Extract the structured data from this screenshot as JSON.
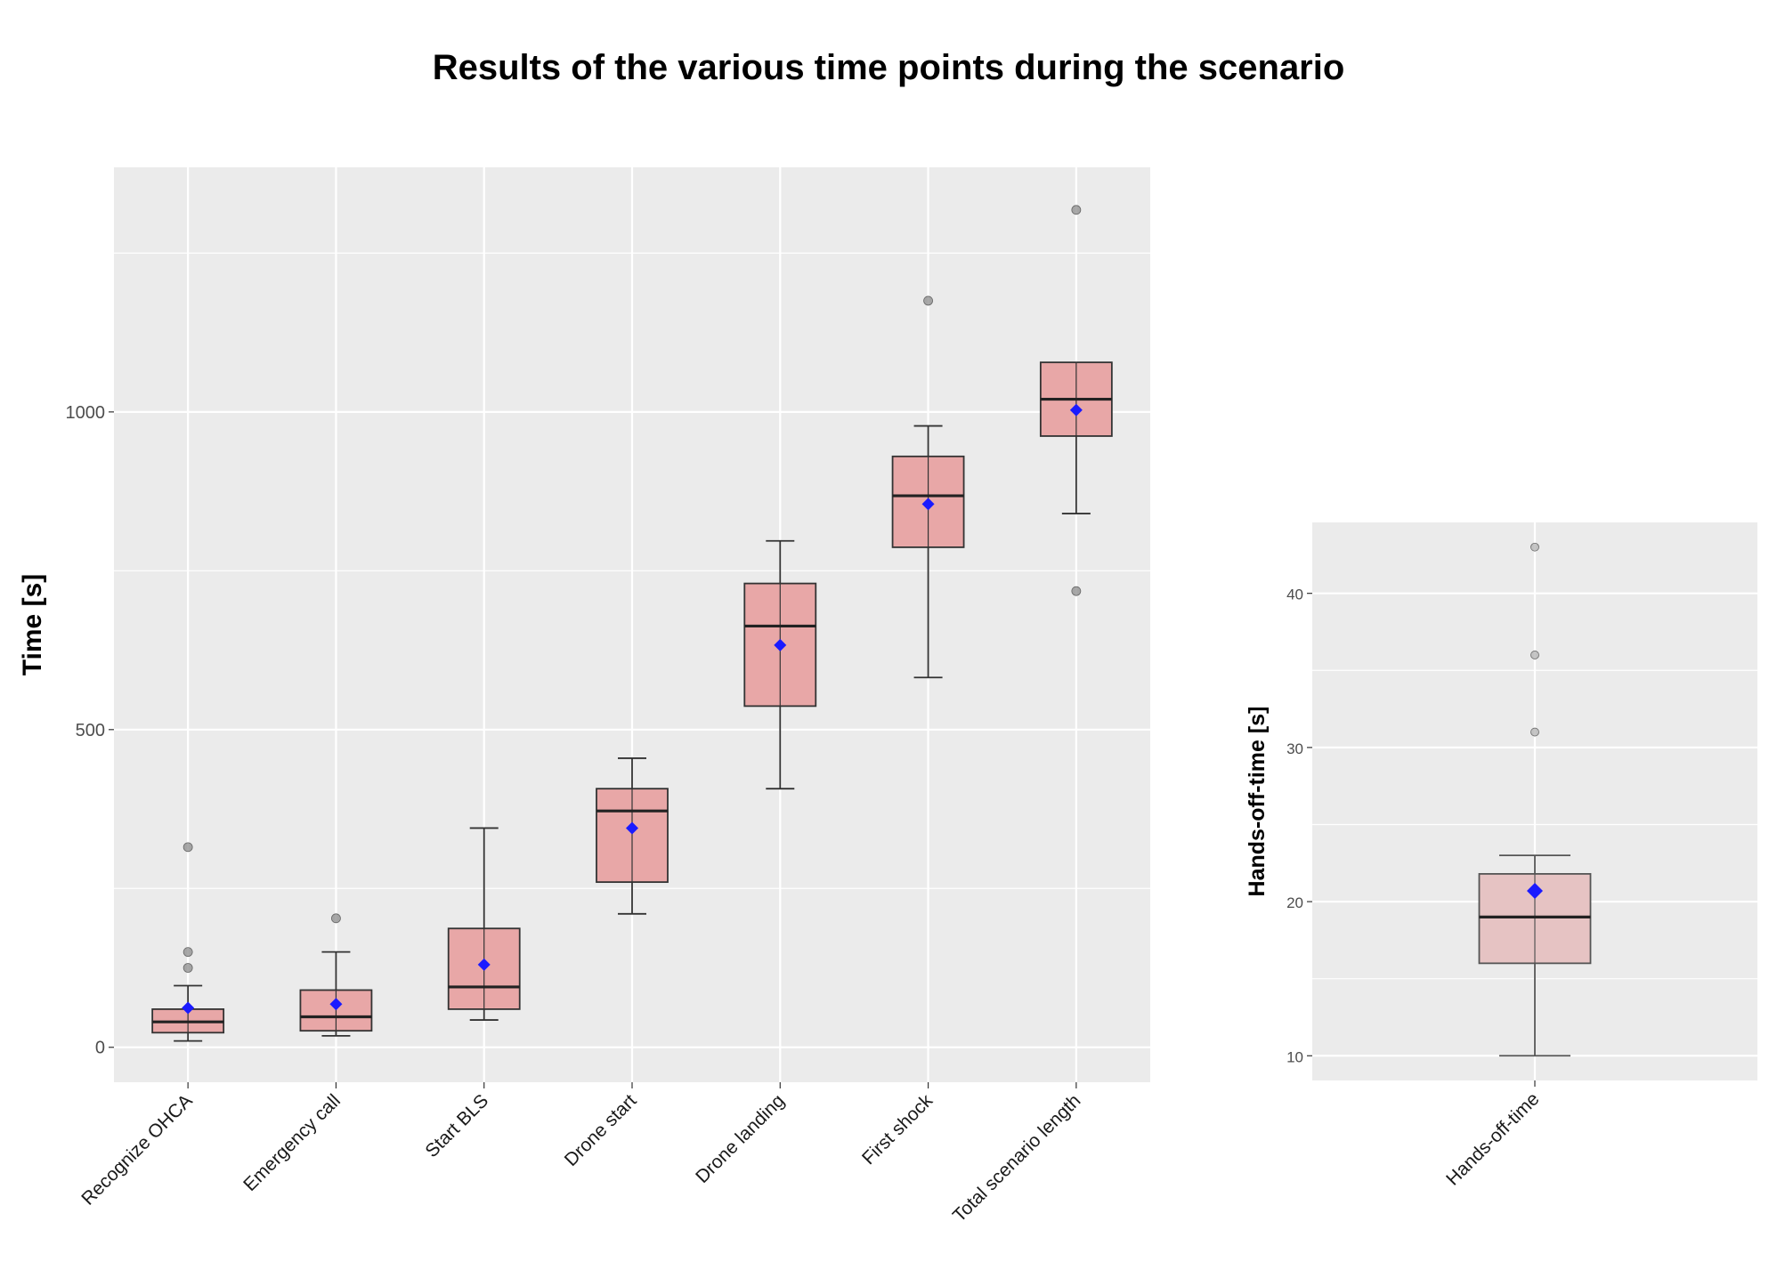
{
  "title": "Results of the various time points during the scenario",
  "chart_data": [
    {
      "type": "boxplot",
      "ylabel": "Time [s]",
      "xlabel": "",
      "ylim": [
        -55,
        1385
      ],
      "yticks": [
        0,
        500,
        1000
      ],
      "grid": true,
      "categories": [
        "Recognize OHCA",
        "Emergency call",
        "Start BLS",
        "Drone start",
        "Drone landing",
        "First shock",
        "Total scenario length"
      ],
      "boxes": [
        {
          "min": 10,
          "q1": 23,
          "median": 40,
          "q3": 60,
          "max": 97,
          "mean": 62,
          "outliers": [
            125,
            150,
            315
          ]
        },
        {
          "min": 18,
          "q1": 26,
          "median": 48,
          "q3": 90,
          "max": 150,
          "mean": 68,
          "outliers": [
            203
          ]
        },
        {
          "min": 43,
          "q1": 60,
          "median": 95,
          "q3": 187,
          "max": 345,
          "mean": 130,
          "outliers": []
        },
        {
          "min": 210,
          "q1": 260,
          "median": 372,
          "q3": 407,
          "max": 455,
          "mean": 345,
          "outliers": []
        },
        {
          "min": 407,
          "q1": 537,
          "median": 663,
          "q3": 730,
          "max": 797,
          "mean": 633,
          "outliers": []
        },
        {
          "min": 582,
          "q1": 787,
          "median": 868,
          "q3": 930,
          "max": 978,
          "mean": 855,
          "outliers": [
            1175
          ]
        },
        {
          "min": 840,
          "q1": 962,
          "median": 1020,
          "q3": 1078,
          "max": null,
          "mean": 1003,
          "outliers": [
            718,
            1318
          ]
        }
      ],
      "colors": {
        "box_fill": "#e8a7a7",
        "box_edge": "#333333",
        "mean": "#1a1aff",
        "outlier": "#8c8c8c",
        "panel": "#ebebeb",
        "grid": "#ffffff"
      }
    },
    {
      "type": "boxplot",
      "ylabel": "Hands-off-time [s]",
      "xlabel": "",
      "ylim": [
        8.4,
        44.6
      ],
      "yticks": [
        10,
        20,
        30,
        40
      ],
      "grid": true,
      "categories": [
        "Hands-off-time"
      ],
      "boxes": [
        {
          "min": 10,
          "q1": 16,
          "median": 19,
          "q3": 21.8,
          "max": 23,
          "mean": 20.7,
          "outliers": [
            31,
            36,
            43
          ]
        }
      ],
      "colors": {
        "box_fill": "#e6c3c3",
        "box_edge": "#555555",
        "mean": "#1a1aff",
        "outlier": "#b3b3b3",
        "panel": "#ebebeb",
        "grid": "#ffffff"
      }
    }
  ]
}
